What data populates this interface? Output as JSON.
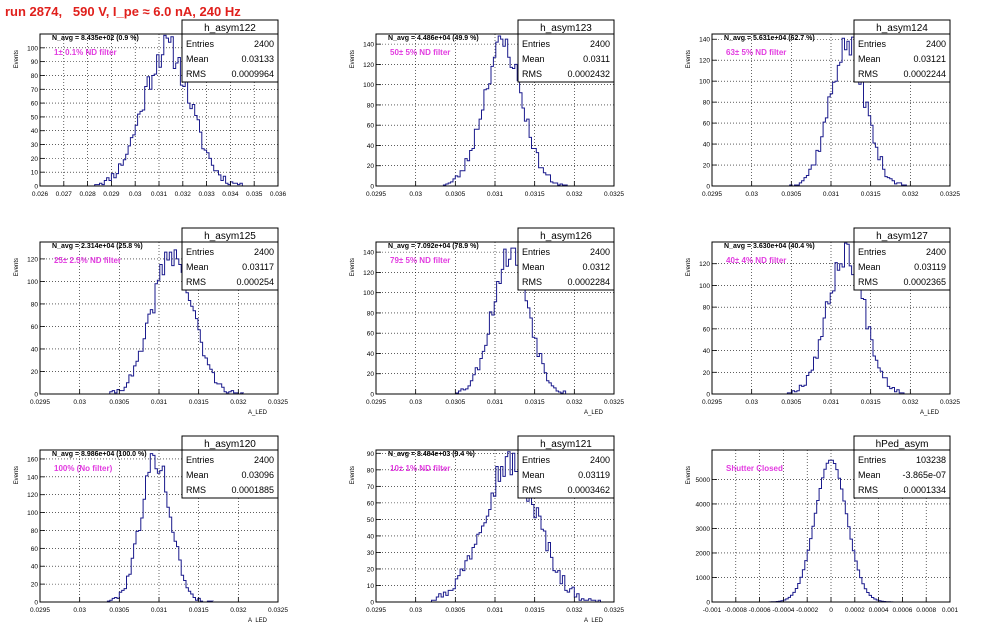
{
  "page_title": "run 2874,   590 V, I_pe ≈ 6.0 nA, 240 Hz",
  "colors": {
    "hist": "#1a1a8c",
    "title": "#e0201c",
    "annotation": "#e23be0",
    "grid": "#000000"
  },
  "stat_labels": {
    "entries": "Entries",
    "mean": "Mean",
    "rms": "RMS"
  },
  "y_axis_label": "Events",
  "x_axis_label": "A_LED",
  "chart_data": [
    {
      "type": "bar",
      "name": "h_asym122",
      "entries": "2400",
      "mean": "0.03133",
      "rms": "0.0009964",
      "navg": "N_avg = 8.435e+02 (0.9 %)",
      "note": "1± 0.1% ND filter",
      "xlim": [
        0.026,
        0.036
      ],
      "xticks": [
        "0.026",
        "0.027",
        "0.028",
        "0.029",
        "0.03",
        "0.031",
        "0.032",
        "0.033",
        "0.034",
        "0.035",
        "0.036"
      ],
      "ylim": [
        0,
        110
      ],
      "yticks": [
        0,
        10,
        20,
        30,
        40,
        50,
        60,
        70,
        80,
        90,
        100
      ],
      "hist": {
        "mean": 0.03133,
        "sigma": 0.0009964,
        "peak": 100,
        "lo": 0.0283,
        "hi": 0.0352,
        "bin": 0.0001,
        "seed": 11
      },
      "show_xlabel": false
    },
    {
      "type": "bar",
      "name": "h_asym123",
      "entries": "2400",
      "mean": "0.0311",
      "rms": "0.0002432",
      "navg": "N_avg = 4.486e+04 (49.9 %)",
      "note": "50± 5% ND filter",
      "xlim": [
        0.0295,
        0.0325
      ],
      "xticks": [
        "0.0295",
        "0.03",
        "0.0305",
        "0.031",
        "0.0315",
        "0.032",
        "0.0325"
      ],
      "ylim": [
        0,
        150
      ],
      "yticks": [
        0,
        20,
        40,
        60,
        80,
        100,
        120,
        140
      ],
      "hist": {
        "mean": 0.0311,
        "sigma": 0.0002432,
        "peak": 140,
        "lo": 0.03035,
        "hi": 0.03195,
        "bin": 3e-05,
        "seed": 23
      },
      "show_xlabel": false
    },
    {
      "type": "bar",
      "name": "h_asym124",
      "entries": "2400",
      "mean": "0.03121",
      "rms": "0.0002244",
      "navg": "N_avg = 5.631e+04 (62.7 %)",
      "note": "63± 5% ND filter",
      "xlim": [
        0.0295,
        0.0325
      ],
      "xticks": [
        "0.0295",
        "0.03",
        "0.0305",
        "0.031",
        "0.0315",
        "0.032",
        "0.0325"
      ],
      "ylim": [
        0,
        145
      ],
      "yticks": [
        0,
        20,
        40,
        60,
        80,
        100,
        120,
        140
      ],
      "hist": {
        "mean": 0.03121,
        "sigma": 0.0002244,
        "peak": 135,
        "lo": 0.03045,
        "hi": 0.03195,
        "bin": 3e-05,
        "seed": 37
      },
      "show_xlabel": false
    },
    {
      "type": "bar",
      "name": "h_asym125",
      "entries": "2400",
      "mean": "0.03117",
      "rms": "0.000254",
      "navg": "N_avg = 2.314e+04 (25.8 %)",
      "note": "25± 2.5% ND filter",
      "xlim": [
        0.0295,
        0.0325
      ],
      "xticks": [
        "0.0295",
        "0.03",
        "0.0305",
        "0.031",
        "0.0315",
        "0.032",
        "0.0325"
      ],
      "ylim": [
        0,
        135
      ],
      "yticks": [
        0,
        20,
        40,
        60,
        80,
        100,
        120
      ],
      "hist": {
        "mean": 0.03117,
        "sigma": 0.000254,
        "peak": 125,
        "lo": 0.03035,
        "hi": 0.03205,
        "bin": 3e-05,
        "seed": 41
      },
      "show_xlabel": true
    },
    {
      "type": "bar",
      "name": "h_asym126",
      "entries": "2400",
      "mean": "0.0312",
      "rms": "0.0002284",
      "navg": "N_avg = 7.092e+04 (78.9 %)",
      "note": "79± 5% ND filter",
      "xlim": [
        0.0295,
        0.0325
      ],
      "xticks": [
        "0.0295",
        "0.03",
        "0.0305",
        "0.031",
        "0.0315",
        "0.032",
        "0.0325"
      ],
      "ylim": [
        0,
        150
      ],
      "yticks": [
        0,
        20,
        40,
        60,
        80,
        100,
        120,
        140
      ],
      "hist": {
        "mean": 0.0312,
        "sigma": 0.0002284,
        "peak": 140,
        "lo": 0.03045,
        "hi": 0.03195,
        "bin": 3e-05,
        "seed": 53
      },
      "show_xlabel": true
    },
    {
      "type": "bar",
      "name": "h_asym127",
      "entries": "2400",
      "mean": "0.03119",
      "rms": "0.0002365",
      "navg": "N_avg = 3.630e+04 (40.4 %)",
      "note": "40± 4% ND filter",
      "xlim": [
        0.0295,
        0.0325
      ],
      "xticks": [
        "0.0295",
        "0.03",
        "0.0305",
        "0.031",
        "0.0315",
        "0.032",
        "0.0325"
      ],
      "ylim": [
        0,
        140
      ],
      "yticks": [
        0,
        20,
        40,
        60,
        80,
        100,
        120
      ],
      "hist": {
        "mean": 0.03119,
        "sigma": 0.0002365,
        "peak": 130,
        "lo": 0.03045,
        "hi": 0.03195,
        "bin": 3e-05,
        "seed": 67
      },
      "show_xlabel": true
    },
    {
      "type": "bar",
      "name": "h_asym120",
      "entries": "2400",
      "mean": "0.03096",
      "rms": "0.0001885",
      "navg": "N_avg = 8.986e+04 (100.0 %)",
      "note": "100% (No filter)",
      "xlim": [
        0.0295,
        0.0325
      ],
      "xticks": [
        "0.0295",
        "0.03",
        "0.0305",
        "0.031",
        "0.0315",
        "0.032",
        "0.0325"
      ],
      "ylim": [
        0,
        170
      ],
      "yticks": [
        0,
        20,
        40,
        60,
        80,
        100,
        120,
        140,
        160
      ],
      "hist": {
        "mean": 0.03096,
        "sigma": 0.0001885,
        "peak": 160,
        "lo": 0.03035,
        "hi": 0.03165,
        "bin": 3e-05,
        "seed": 79
      },
      "show_xlabel": true
    },
    {
      "type": "bar",
      "name": "h_asym121",
      "entries": "2400",
      "mean": "0.03119",
      "rms": "0.0003462",
      "navg": "N_avg = 8.484e+03 (9.4 %)",
      "note": "10± 1% ND filter",
      "xlim": [
        0.0295,
        0.0325
      ],
      "xticks": [
        "0.0295",
        "0.03",
        "0.0305",
        "0.031",
        "0.0315",
        "0.032",
        "0.0325"
      ],
      "ylim": [
        0,
        92
      ],
      "yticks": [
        0,
        10,
        20,
        30,
        40,
        50,
        60,
        70,
        80,
        90
      ],
      "hist": {
        "mean": 0.03119,
        "sigma": 0.0003462,
        "peak": 85,
        "lo": 0.03005,
        "hi": 0.03235,
        "bin": 3e-05,
        "seed": 97
      },
      "show_xlabel": true
    },
    {
      "type": "bar",
      "name": "hPed_asym",
      "entries": "103238",
      "mean": "-3.865e-07",
      "rms": "0.0001334",
      "navg": "",
      "note": "Shutter Closed",
      "xlim": [
        -0.001,
        0.001
      ],
      "xticks": [
        "-0.001",
        "-0.0008",
        "-0.0006",
        "-0.0004",
        "-0.0002",
        "0",
        "0.0002",
        "0.0004",
        "0.0006",
        "0.0008",
        "0.001"
      ],
      "ylim": [
        0,
        6200
      ],
      "yticks": [
        0,
        1000,
        2000,
        3000,
        4000,
        5000
      ],
      "hist": {
        "mean": -4e-07,
        "sigma": 0.0001334,
        "peak": 5800,
        "lo": -0.00062,
        "hi": 0.00062,
        "bin": 2e-05,
        "seed": 0
      },
      "show_xlabel": false
    }
  ]
}
